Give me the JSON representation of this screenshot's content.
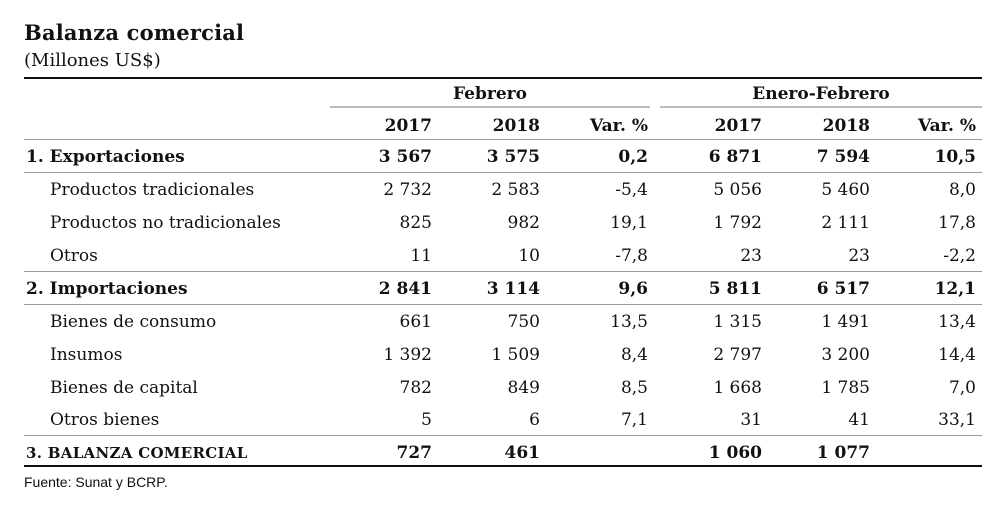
{
  "title": "Balanza comercial",
  "subtitle": "(Millones US$)",
  "groups": {
    "feb": "Febrero",
    "enefeb": "Enero-Febrero"
  },
  "columns": [
    "2017",
    "2018",
    "Var. %",
    "2017",
    "2018",
    "Var. %"
  ],
  "rows": [
    {
      "label": "1. Exportaciones",
      "values": [
        "3 567",
        "3 575",
        "0,2",
        "6 871",
        "7 594",
        "10,5"
      ],
      "bold": true
    },
    {
      "label": "Productos tradicionales",
      "values": [
        "2 732",
        "2 583",
        "-5,4",
        "5 056",
        "5 460",
        "8,0"
      ],
      "bold": false
    },
    {
      "label": "Productos no tradicionales",
      "values": [
        "825",
        "982",
        "19,1",
        "1 792",
        "2 111",
        "17,8"
      ],
      "bold": false
    },
    {
      "label": "Otros",
      "values": [
        "11",
        "10",
        "-7,8",
        "23",
        "23",
        "-2,2"
      ],
      "bold": false
    },
    {
      "label": "2. Importaciones",
      "values": [
        "2 841",
        "3 114",
        "9,6",
        "5 811",
        "6 517",
        "12,1"
      ],
      "bold": true
    },
    {
      "label": "Bienes de consumo",
      "values": [
        "661",
        "750",
        "13,5",
        "1 315",
        "1 491",
        "13,4"
      ],
      "bold": false
    },
    {
      "label": "Insumos",
      "values": [
        "1 392",
        "1 509",
        "8,4",
        "2 797",
        "3 200",
        "14,4"
      ],
      "bold": false
    },
    {
      "label": "Bienes de capital",
      "values": [
        "782",
        "849",
        "8,5",
        "1 668",
        "1 785",
        "7,0"
      ],
      "bold": false
    },
    {
      "label": "Otros bienes",
      "values": [
        "5",
        "6",
        "7,1",
        "31",
        "41",
        "33,1"
      ],
      "bold": false
    },
    {
      "label": "3. BALANZA COMERCIAL",
      "values": [
        "727",
        "461",
        "",
        "1 060",
        "1 077",
        ""
      ],
      "bold": true
    }
  ],
  "source": "Fuente: Sunat y BCRP."
}
